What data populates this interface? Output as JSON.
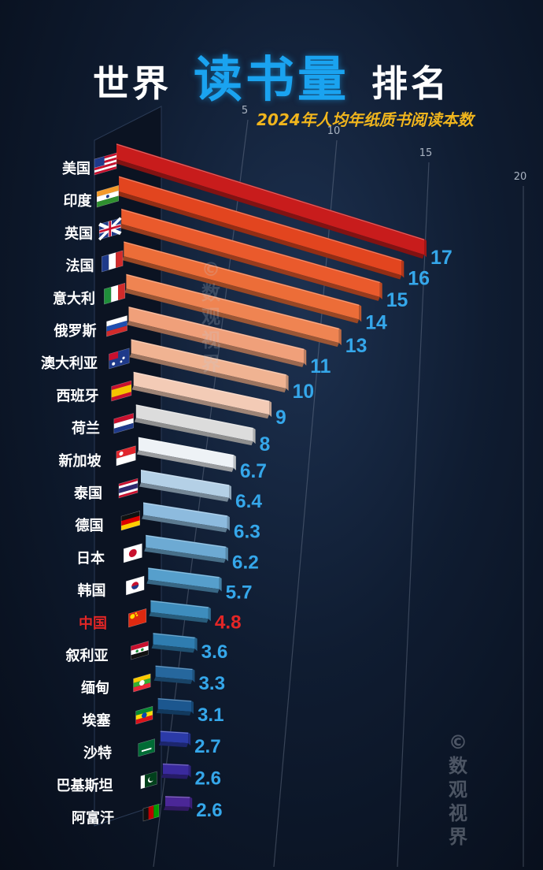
{
  "header": {
    "title_part1": "世界",
    "title_highlight": "读书量",
    "title_part2": "排名",
    "subtitle": "2024年人均年纸质书阅读本数"
  },
  "watermark": "©数观视界",
  "colors": {
    "highlight_country": "#e32626",
    "value_label": "#35a7ea",
    "title_highlight": "#1aa3f0",
    "subtitle": "#f0b51d"
  },
  "chart_data": {
    "type": "bar",
    "orientation": "horizontal",
    "subtitle": "2024年人均年纸质书阅读本数",
    "categories": [
      "美国",
      "印度",
      "英国",
      "法国",
      "意大利",
      "俄罗斯",
      "澳大利亚",
      "西班牙",
      "荷兰",
      "新加坡",
      "泰国",
      "德国",
      "日本",
      "韩国",
      "中国",
      "叙利亚",
      "缅甸",
      "埃塞",
      "沙特",
      "巴基斯坦",
      "阿富汗"
    ],
    "values": [
      17,
      16,
      15,
      14,
      13,
      11,
      10,
      9,
      8,
      6.7,
      6.4,
      6.3,
      6.2,
      5.7,
      4.8,
      3.6,
      3.3,
      3.1,
      2.7,
      2.6,
      2.6
    ],
    "value_labels": [
      "17",
      "16",
      "15",
      "14",
      "13",
      "11",
      "10",
      "9",
      "8",
      "6.7",
      "6.4",
      "6.3",
      "6.2",
      "5.7",
      "4.8",
      "3.6",
      "3.3",
      "3.1",
      "2.7",
      "2.6",
      "2.6"
    ],
    "highlight_category": "中国",
    "xlim": [
      0,
      20
    ],
    "ticks": [
      "5",
      "10",
      "15",
      "20"
    ],
    "flags": [
      "us",
      "in",
      "gb",
      "fr",
      "it",
      "ru",
      "au",
      "es",
      "nl",
      "sg",
      "th",
      "de",
      "jp",
      "kr",
      "cn",
      "sy",
      "mm",
      "et",
      "sa",
      "pk",
      "af"
    ],
    "bar_colors": [
      "#c81c1c",
      "#e2451f",
      "#ea5a2c",
      "#ec6d38",
      "#ef8452",
      "#f0a07a",
      "#f0b392",
      "#f3cbb6",
      "#dcdcdc",
      "#eef2f6",
      "#b4d0e6",
      "#8dbbde",
      "#6daad3",
      "#569fcc",
      "#3e8dbd",
      "#2f7db0",
      "#26679d",
      "#1c578f",
      "#2b3aa8",
      "#3a2a9e",
      "#4b2797"
    ],
    "grid": true
  }
}
